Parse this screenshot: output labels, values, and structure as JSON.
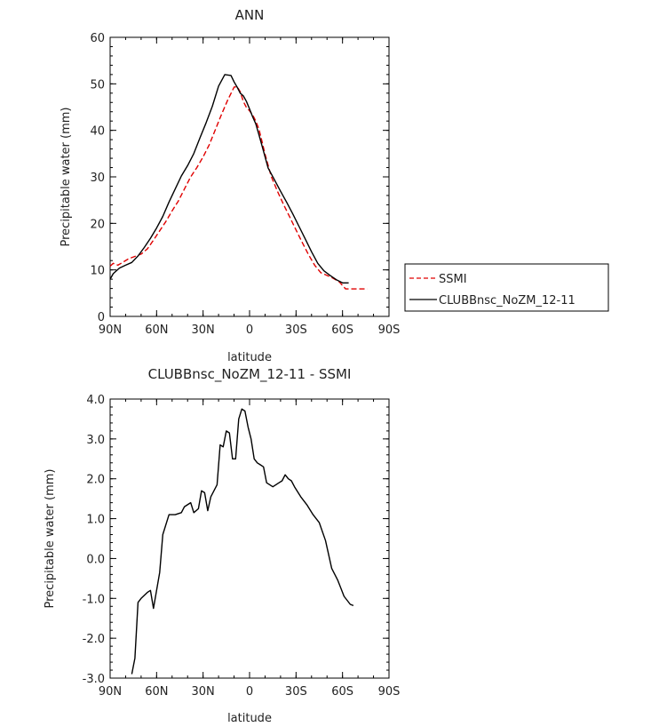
{
  "colors": {
    "ssmi": "#e00000",
    "model": "#000000",
    "axis": "#000000"
  },
  "chart_data": [
    {
      "type": "line",
      "title": "ANN",
      "xlabel": "latitude",
      "ylabel": "Precipitable water (mm)",
      "xlim": [
        -90,
        90
      ],
      "ylim": [
        0,
        60
      ],
      "xticks": [
        -90,
        -60,
        -30,
        0,
        30,
        60,
        90
      ],
      "xtick_labels": [
        "90N",
        "60N",
        "30N",
        "0",
        "30S",
        "60S",
        "90S"
      ],
      "yticks": [
        0,
        10,
        20,
        30,
        40,
        50,
        60
      ],
      "ytick_labels": [
        "0",
        "10",
        "20",
        "30",
        "40",
        "50",
        "60"
      ],
      "legend_position": "right",
      "series": [
        {
          "name": "SSMI",
          "style": "dashed",
          "color": "#e00000",
          "x": [
            -92,
            -88,
            -85,
            -82,
            -78,
            -74,
            -70,
            -66,
            -62,
            -58,
            -54,
            -50,
            -46,
            -42,
            -38,
            -34,
            -30,
            -26,
            -22,
            -18,
            -14,
            -10,
            -8,
            -6,
            -4,
            -2,
            0,
            2,
            4,
            6,
            8,
            10,
            14,
            18,
            22,
            26,
            30,
            34,
            38,
            42,
            46,
            50,
            54,
            58,
            62,
            66,
            70,
            74,
            76
          ],
          "y": [
            10.8,
            11.4,
            11.0,
            11.6,
            12.4,
            12.9,
            13.4,
            14.5,
            16.4,
            18.4,
            20.4,
            22.7,
            24.8,
            27.4,
            30.0,
            32.0,
            34.3,
            36.9,
            40.2,
            43.5,
            46.6,
            49.3,
            49.4,
            48.3,
            46.2,
            44.9,
            44.2,
            43.3,
            42.0,
            40.3,
            37.6,
            34.9,
            30.1,
            26.9,
            24.0,
            21.3,
            18.6,
            15.9,
            13.3,
            11.0,
            9.4,
            8.8,
            8.2,
            7.4,
            5.9,
            5.9,
            5.9,
            5.9,
            5.9
          ]
        },
        {
          "name": "CLUBBnsc_NoZM_12-11",
          "style": "solid",
          "color": "#000000",
          "x": [
            -92,
            -88,
            -84,
            -80,
            -76,
            -72,
            -68,
            -64,
            -60,
            -56,
            -52,
            -48,
            -44,
            -40,
            -36,
            -32,
            -28,
            -24,
            -20,
            -16,
            -12,
            -10,
            -8,
            -6,
            -4,
            -2,
            0,
            2,
            4,
            6,
            8,
            12,
            16,
            20,
            24,
            28,
            32,
            36,
            40,
            44,
            48,
            52,
            56,
            60,
            64
          ],
          "y": [
            8.0,
            9.2,
            10.4,
            11.0,
            11.6,
            13.0,
            14.8,
            16.8,
            19.0,
            21.5,
            24.6,
            27.4,
            30.2,
            32.4,
            35.0,
            38.4,
            41.7,
            45.2,
            49.5,
            52.0,
            51.8,
            50.4,
            49.3,
            48.0,
            47.4,
            46.2,
            44.6,
            42.9,
            41.4,
            39.1,
            36.7,
            31.9,
            29.4,
            26.9,
            24.5,
            22.0,
            19.3,
            16.6,
            13.9,
            11.4,
            9.8,
            8.8,
            7.9,
            7.2,
            7.2
          ]
        }
      ]
    },
    {
      "type": "line",
      "title": "CLUBBnsc_NoZM_12-11 - SSMI",
      "xlabel": "latitude",
      "ylabel": "Precipitable water (mm)",
      "xlim": [
        -90,
        90
      ],
      "ylim": [
        -3.0,
        4.0
      ],
      "xticks": [
        -90,
        -60,
        -30,
        0,
        30,
        60,
        90
      ],
      "xtick_labels": [
        "90N",
        "60N",
        "30N",
        "0",
        "30S",
        "60S",
        "90S"
      ],
      "yticks": [
        -3.0,
        -2.0,
        -1.0,
        0.0,
        1.0,
        2.0,
        3.0,
        4.0
      ],
      "ytick_labels": [
        "-3.0",
        "-2.0",
        "-1.0",
        "0.0",
        "1.0",
        "2.0",
        "3.0",
        "4.0"
      ],
      "series": [
        {
          "style": "solid",
          "color": "#000000",
          "x": [
            -76,
            -74,
            -72,
            -70,
            -66,
            -64,
            -62,
            -58,
            -56,
            -52,
            -48,
            -44,
            -42,
            -38,
            -36,
            -33,
            -31,
            -29,
            -27,
            -25,
            -21,
            -19,
            -17,
            -15,
            -13,
            -11,
            -9,
            -7,
            -5,
            -3,
            -1,
            1,
            3,
            5,
            7,
            9,
            11,
            15,
            19,
            21,
            23,
            25,
            27,
            29,
            33,
            37,
            41,
            45,
            49,
            53,
            57,
            61,
            63,
            65,
            67
          ],
          "y": [
            -2.9,
            -2.5,
            -1.1,
            -1.0,
            -0.85,
            -0.8,
            -1.25,
            -0.35,
            0.6,
            1.1,
            1.1,
            1.15,
            1.3,
            1.4,
            1.15,
            1.25,
            1.7,
            1.65,
            1.2,
            1.55,
            1.85,
            2.85,
            2.8,
            3.2,
            3.15,
            2.5,
            2.5,
            3.5,
            3.75,
            3.7,
            3.3,
            3.0,
            2.5,
            2.4,
            2.35,
            2.3,
            1.9,
            1.8,
            1.9,
            1.95,
            2.1,
            2.0,
            1.95,
            1.8,
            1.55,
            1.35,
            1.1,
            0.9,
            0.45,
            -0.25,
            -0.55,
            -0.95,
            -1.05,
            -1.15,
            -1.18
          ]
        }
      ]
    }
  ]
}
